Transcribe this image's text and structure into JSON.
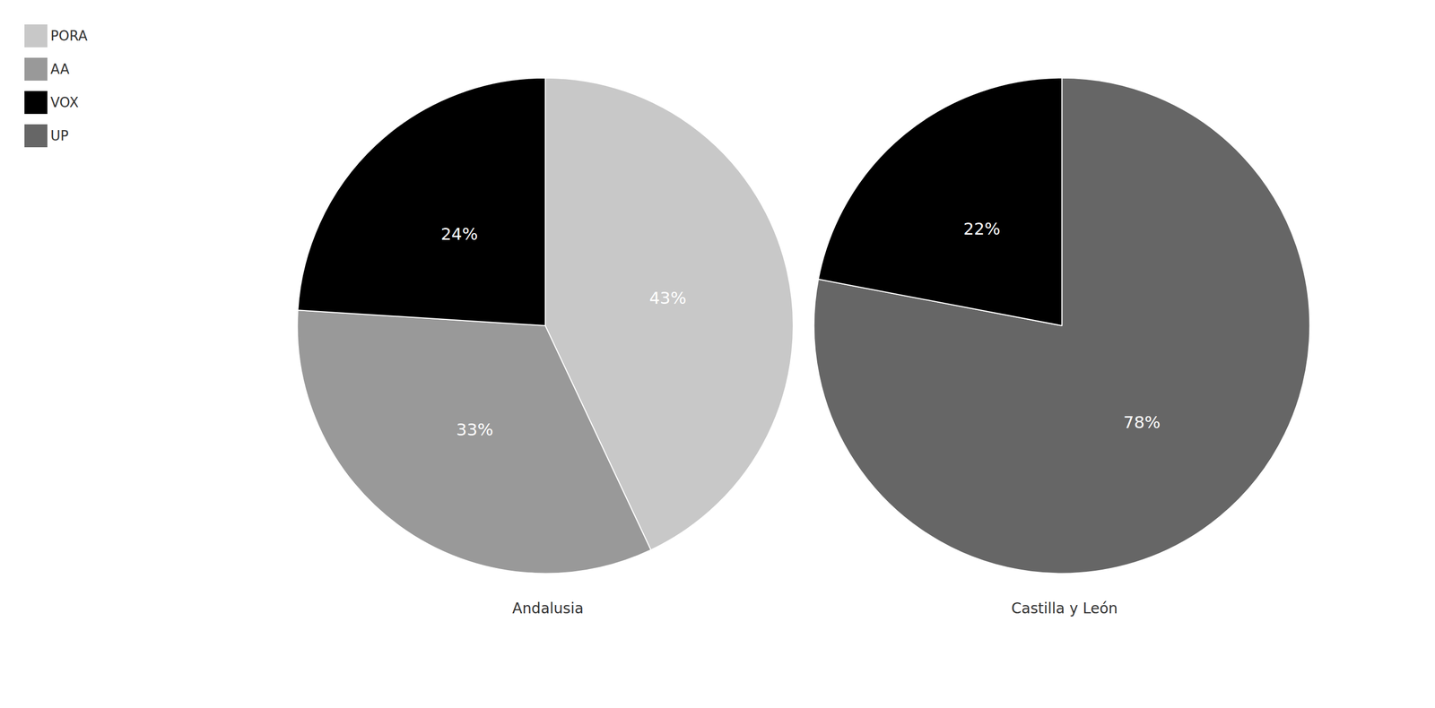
{
  "chart_data": [
    {
      "type": "pie",
      "title": "Andalusia",
      "categories": [
        "PORA",
        "AA",
        "VOX"
      ],
      "values": [
        43,
        33,
        24
      ],
      "value_labels": [
        "43%",
        "33%",
        "24%"
      ],
      "colors": [
        "#c8c8c8",
        "#999999",
        "#000000"
      ],
      "data_labels": true,
      "legend": "upper left"
    },
    {
      "type": "pie",
      "title": "Castilla y León",
      "categories": [
        "UP",
        "VOX"
      ],
      "values": [
        78,
        22
      ],
      "value_labels": [
        "78%",
        "22%"
      ],
      "colors": [
        "#666666",
        "#000000"
      ],
      "data_labels": true,
      "legend": "upper left"
    }
  ]
}
